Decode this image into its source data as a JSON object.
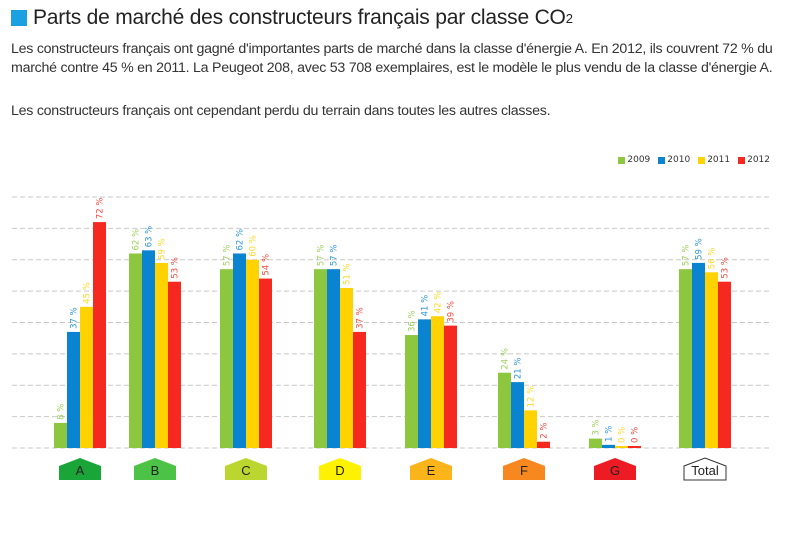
{
  "header": {
    "title_main": "Parts de marché des constructeurs français par classe CO",
    "title_sub": "2",
    "paragraph1": "Les constructeurs français ont gagné d'importantes parts de marché dans la classe d'énergie A. En 2012, ils couvrent 72 % du marché contre 45 % en 2011. La Peugeot 208, avec 53 708 exemplaires, est le modèle le plus vendu de la classe d'énergie A.",
    "paragraph2": "Les constructeurs français ont cependant perdu du terrain dans toutes les autres classes.",
    "accent_color": "#1ba1e2"
  },
  "chart_data": {
    "type": "bar",
    "title": "Parts de marché des constructeurs français par classe CO2",
    "xlabel": "",
    "ylabel": "",
    "ylim": [
      0,
      80
    ],
    "grid": true,
    "legend_position": "top-right",
    "value_suffix": " %",
    "categories": [
      "A",
      "B",
      "C",
      "D",
      "E",
      "F",
      "G",
      "Total"
    ],
    "category_colors": [
      "#1aa538",
      "#4cc346",
      "#bcd630",
      "#fff200",
      "#fbb51b",
      "#f7871f",
      "#ed1c24",
      "#ffffff"
    ],
    "series": [
      {
        "name": "2009",
        "color": "#8dc63f",
        "values": [
          8,
          62,
          57,
          57,
          36,
          24,
          3,
          57
        ]
      },
      {
        "name": "2010",
        "color": "#0a84d0",
        "values": [
          37,
          63,
          62,
          57,
          41,
          21,
          1,
          59
        ]
      },
      {
        "name": "2011",
        "color": "#ffd200",
        "values": [
          45,
          59,
          60,
          51,
          42,
          12,
          0,
          56
        ]
      },
      {
        "name": "2012",
        "color": "#f5291f",
        "values": [
          72,
          53,
          54,
          37,
          39,
          2,
          0,
          53
        ]
      }
    ]
  }
}
